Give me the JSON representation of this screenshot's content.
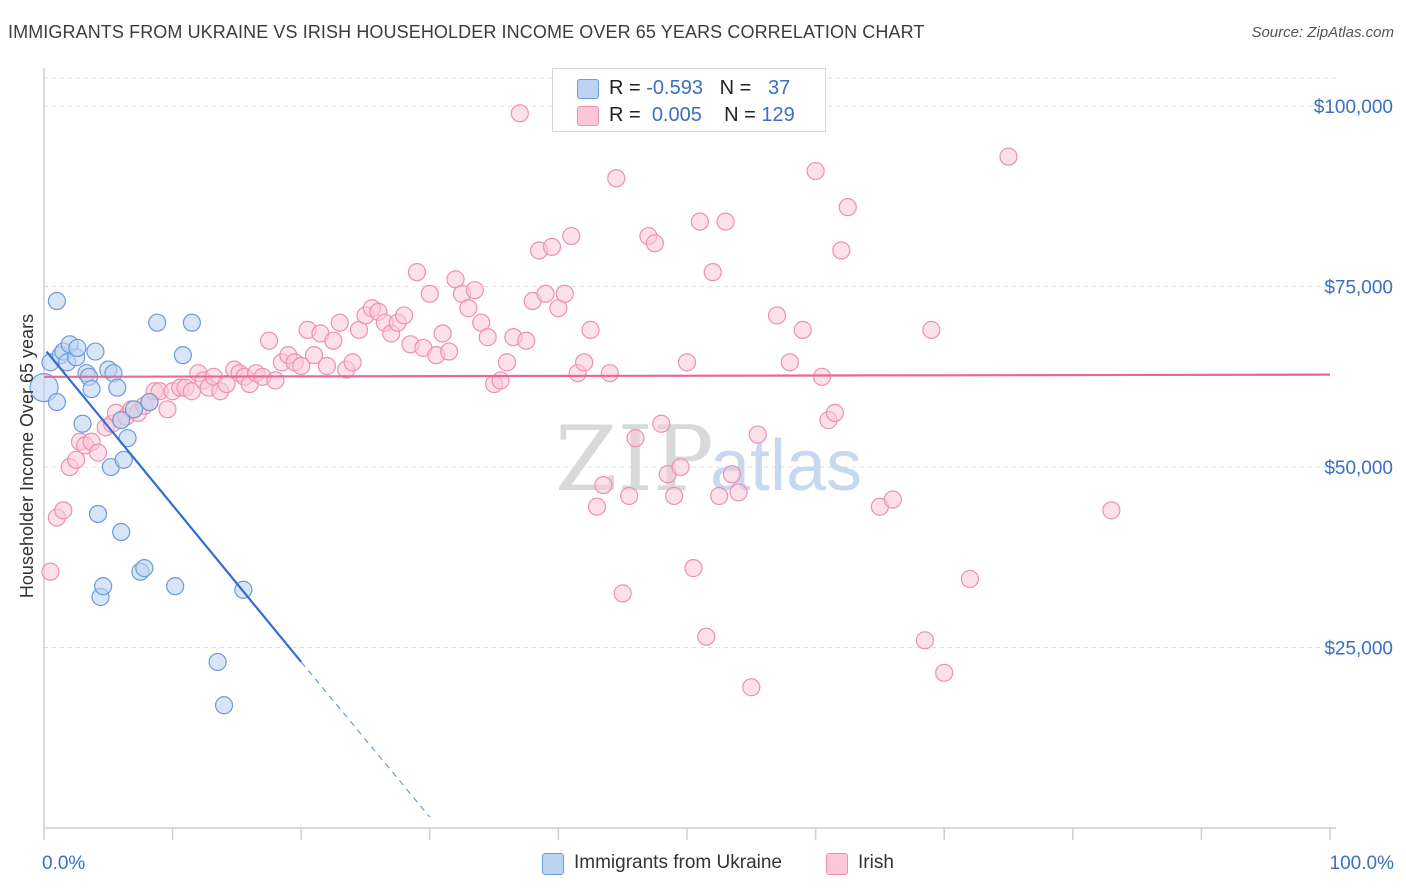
{
  "header": {
    "title": "IMMIGRANTS FROM UKRAINE VS IRISH HOUSEHOLDER INCOME OVER 65 YEARS CORRELATION CHART",
    "source": "Source: ZipAtlas.com"
  },
  "watermark": {
    "zip": "ZIP",
    "atlas": "atlas"
  },
  "legend": {
    "ukraine": {
      "r_label": "R =",
      "r_value": "-0.593",
      "n_label": "N =",
      "n_value": "37"
    },
    "irish": {
      "r_label": "R =",
      "r_value": "0.005",
      "n_label": "N =",
      "n_value": "129"
    }
  },
  "bottom_legend": {
    "ukraine": "Immigrants from Ukraine",
    "irish": "Irish"
  },
  "colors": {
    "ukraine_fill": "#bcd3f2",
    "ukraine_stroke": "#6e9ad8",
    "ukraine_line": "#2f6fd0",
    "irish_fill": "#fbc8d8",
    "irish_stroke": "#ef8fb0",
    "irish_line": "#e8698f",
    "axis_text": "#3a6fc4",
    "grid": "#dcdcdc"
  },
  "chart_data": {
    "type": "scatter",
    "title": "IMMIGRANTS FROM UKRAINE VS IRISH HOUSEHOLDER INCOME OVER 65 YEARS CORRELATION CHART",
    "xlabel": "",
    "ylabel": "Householder Income Over 65 years",
    "xlim": [
      0,
      100
    ],
    "ylim": [
      0,
      105000
    ],
    "x_tick_labels": [
      "0.0%",
      "100.0%"
    ],
    "y_ticks": [
      25000,
      50000,
      75000,
      100000
    ],
    "y_tick_labels": [
      "$25,000",
      "$50,000",
      "$75,000",
      "$100,000"
    ],
    "grid": true,
    "series": [
      {
        "name": "Immigrants from Ukraine",
        "trend": {
          "x": [
            0.2,
            20.0
          ],
          "y": [
            66000,
            23000
          ],
          "dashed_to": {
            "x": 30.0,
            "y": 1500
          }
        },
        "points": [
          [
            0.0,
            61000
          ],
          [
            0.5,
            64500
          ],
          [
            1.0,
            59000
          ],
          [
            1.0,
            73000
          ],
          [
            1.3,
            65500
          ],
          [
            1.5,
            66000
          ],
          [
            1.8,
            64500
          ],
          [
            2.0,
            67000
          ],
          [
            2.5,
            65200
          ],
          [
            2.6,
            66500
          ],
          [
            3.0,
            56000
          ],
          [
            3.3,
            63000
          ],
          [
            3.5,
            62500
          ],
          [
            3.7,
            60800
          ],
          [
            4.0,
            66000
          ],
          [
            4.2,
            43500
          ],
          [
            4.4,
            32000
          ],
          [
            4.6,
            33500
          ],
          [
            5.0,
            63500
          ],
          [
            5.2,
            50000
          ],
          [
            5.4,
            63000
          ],
          [
            5.7,
            61000
          ],
          [
            6.0,
            56500
          ],
          [
            6.2,
            51000
          ],
          [
            6.5,
            54000
          ],
          [
            7.5,
            35500
          ],
          [
            7.8,
            36000
          ],
          [
            8.2,
            59000
          ],
          [
            8.8,
            70000
          ],
          [
            10.2,
            33500
          ],
          [
            10.8,
            65500
          ],
          [
            11.5,
            70000
          ],
          [
            13.5,
            23000
          ],
          [
            14.0,
            17000
          ],
          [
            15.5,
            33000
          ],
          [
            6.0,
            41000
          ],
          [
            7.0,
            58000
          ]
        ]
      },
      {
        "name": "Irish",
        "trend": {
          "x": [
            0.0,
            100.0
          ],
          "y": [
            62500,
            62800
          ]
        },
        "points": [
          [
            0.5,
            35500
          ],
          [
            1.0,
            43000
          ],
          [
            1.5,
            44000
          ],
          [
            2.0,
            50000
          ],
          [
            2.5,
            51000
          ],
          [
            2.8,
            53500
          ],
          [
            3.2,
            53000
          ],
          [
            3.7,
            53500
          ],
          [
            4.2,
            52000
          ],
          [
            4.8,
            55500
          ],
          [
            5.3,
            56000
          ],
          [
            5.6,
            57500
          ],
          [
            6.0,
            56500
          ],
          [
            6.4,
            57000
          ],
          [
            6.8,
            58000
          ],
          [
            7.3,
            57500
          ],
          [
            7.8,
            58500
          ],
          [
            8.2,
            59000
          ],
          [
            8.6,
            60500
          ],
          [
            9.0,
            60500
          ],
          [
            9.6,
            58000
          ],
          [
            10.0,
            60500
          ],
          [
            10.6,
            61000
          ],
          [
            11.0,
            61000
          ],
          [
            11.5,
            60500
          ],
          [
            12.0,
            63000
          ],
          [
            12.4,
            62000
          ],
          [
            12.8,
            61000
          ],
          [
            13.2,
            62500
          ],
          [
            13.7,
            60500
          ],
          [
            14.2,
            61500
          ],
          [
            14.8,
            63500
          ],
          [
            15.2,
            63000
          ],
          [
            15.6,
            62500
          ],
          [
            16.0,
            61500
          ],
          [
            16.5,
            63000
          ],
          [
            17.0,
            62500
          ],
          [
            17.5,
            67500
          ],
          [
            18.0,
            62000
          ],
          [
            18.5,
            64500
          ],
          [
            19.0,
            65500
          ],
          [
            19.5,
            64500
          ],
          [
            20.0,
            64000
          ],
          [
            20.5,
            69000
          ],
          [
            21.0,
            65500
          ],
          [
            21.5,
            68500
          ],
          [
            22.0,
            64000
          ],
          [
            22.5,
            67500
          ],
          [
            23.0,
            70000
          ],
          [
            23.5,
            63500
          ],
          [
            24.0,
            64500
          ],
          [
            24.5,
            69000
          ],
          [
            25.0,
            71000
          ],
          [
            25.5,
            72000
          ],
          [
            26.0,
            71500
          ],
          [
            26.5,
            70000
          ],
          [
            27.0,
            68500
          ],
          [
            27.5,
            70000
          ],
          [
            28.0,
            71000
          ],
          [
            28.5,
            67000
          ],
          [
            29.0,
            77000
          ],
          [
            29.5,
            66500
          ],
          [
            30.0,
            74000
          ],
          [
            30.5,
            65500
          ],
          [
            31.0,
            68500
          ],
          [
            31.5,
            66000
          ],
          [
            32.0,
            76000
          ],
          [
            32.5,
            74000
          ],
          [
            33.0,
            72000
          ],
          [
            33.5,
            74500
          ],
          [
            34.0,
            70000
          ],
          [
            34.5,
            68000
          ],
          [
            35.0,
            61500
          ],
          [
            35.5,
            62000
          ],
          [
            36.0,
            64500
          ],
          [
            36.5,
            68000
          ],
          [
            37.0,
            99000
          ],
          [
            37.5,
            67500
          ],
          [
            38.0,
            73000
          ],
          [
            38.5,
            80000
          ],
          [
            39.0,
            74000
          ],
          [
            39.5,
            80500
          ],
          [
            40.0,
            72000
          ],
          [
            40.5,
            74000
          ],
          [
            41.0,
            82000
          ],
          [
            41.5,
            63000
          ],
          [
            42.0,
            64500
          ],
          [
            42.5,
            69000
          ],
          [
            43.0,
            44500
          ],
          [
            43.5,
            47500
          ],
          [
            44.0,
            63000
          ],
          [
            44.5,
            90000
          ],
          [
            45.0,
            32500
          ],
          [
            45.5,
            46000
          ],
          [
            46.0,
            54000
          ],
          [
            47.0,
            82000
          ],
          [
            47.5,
            81000
          ],
          [
            48.0,
            56000
          ],
          [
            48.5,
            49000
          ],
          [
            49.0,
            46000
          ],
          [
            49.5,
            50000
          ],
          [
            50.0,
            64500
          ],
          [
            50.5,
            36000
          ],
          [
            51.0,
            84000
          ],
          [
            51.5,
            26500
          ],
          [
            52.0,
            77000
          ],
          [
            52.5,
            46000
          ],
          [
            53.0,
            84000
          ],
          [
            53.5,
            49000
          ],
          [
            54.0,
            46500
          ],
          [
            55.0,
            19500
          ],
          [
            55.5,
            54500
          ],
          [
            57.0,
            71000
          ],
          [
            58.0,
            64500
          ],
          [
            59.0,
            69000
          ],
          [
            60.0,
            91000
          ],
          [
            60.5,
            62500
          ],
          [
            61.0,
            56500
          ],
          [
            61.5,
            57500
          ],
          [
            62.0,
            80000
          ],
          [
            62.5,
            86000
          ],
          [
            65.0,
            44500
          ],
          [
            66.0,
            45500
          ],
          [
            68.5,
            26000
          ],
          [
            69.0,
            69000
          ],
          [
            70.0,
            21500
          ],
          [
            72.0,
            34500
          ],
          [
            75.0,
            93000
          ],
          [
            83.0,
            44000
          ]
        ]
      }
    ]
  }
}
